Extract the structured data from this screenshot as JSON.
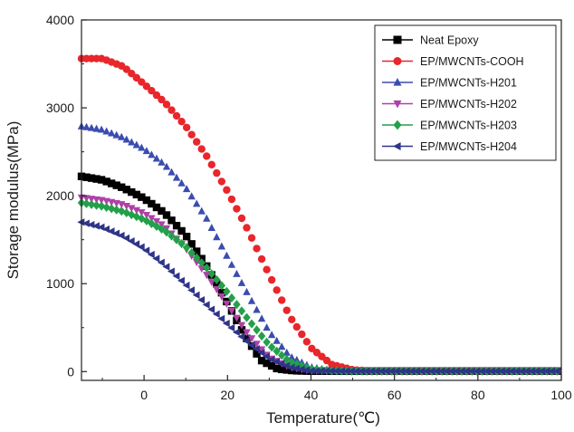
{
  "chart_data": {
    "type": "line",
    "title": "",
    "xlabel": "Temperature(℃)",
    "ylabel": "Storage modulus(MPa)",
    "xlim": [
      -15,
      100
    ],
    "ylim": [
      -100,
      4000
    ],
    "xticks": [
      0,
      20,
      40,
      60,
      80,
      100
    ],
    "yticks": [
      0,
      1000,
      2000,
      3000,
      4000
    ],
    "grid": false,
    "legend_position": "top-right",
    "series": [
      {
        "name": "Neat Epoxy",
        "color": "#000000",
        "marker": "square",
        "x": [
          -15,
          -10,
          -5,
          0,
          5,
          10,
          15,
          20,
          24,
          28,
          32,
          36,
          40,
          50,
          60,
          80,
          100
        ],
        "y": [
          2220,
          2180,
          2090,
          1970,
          1800,
          1550,
          1200,
          780,
          420,
          130,
          30,
          10,
          5,
          5,
          5,
          5,
          5
        ]
      },
      {
        "name": "EP/MWCNTs-COOH",
        "color": "#e8262b",
        "marker": "circle",
        "x": [
          -15,
          -10,
          -5,
          0,
          5,
          10,
          15,
          20,
          25,
          30,
          35,
          40,
          45,
          50,
          55,
          60,
          80,
          100
        ],
        "y": [
          3560,
          3560,
          3470,
          3270,
          3060,
          2790,
          2450,
          2050,
          1600,
          1100,
          620,
          270,
          80,
          20,
          5,
          5,
          5,
          5
        ]
      },
      {
        "name": "EP/MWCNTs-H201",
        "color": "#3b4cb0",
        "marker": "triangle-up",
        "x": [
          -15,
          -10,
          -5,
          0,
          5,
          10,
          15,
          20,
          25,
          30,
          35,
          40,
          45,
          50,
          60,
          80,
          100
        ],
        "y": [
          2790,
          2750,
          2660,
          2530,
          2350,
          2090,
          1740,
          1300,
          870,
          450,
          170,
          50,
          10,
          5,
          5,
          5,
          5
        ]
      },
      {
        "name": "EP/MWCNTs-H202",
        "color": "#b040a8",
        "marker": "triangle-down",
        "x": [
          -15,
          -10,
          -5,
          0,
          5,
          10,
          15,
          20,
          25,
          30,
          35,
          40,
          50,
          60,
          80,
          100
        ],
        "y": [
          1980,
          1950,
          1900,
          1800,
          1650,
          1400,
          1100,
          760,
          420,
          160,
          50,
          10,
          5,
          5,
          5,
          5
        ]
      },
      {
        "name": "EP/MWCNTs-H203",
        "color": "#22a04a",
        "marker": "diamond",
        "x": [
          -15,
          -10,
          -5,
          0,
          5,
          10,
          15,
          20,
          25,
          30,
          35,
          40,
          45,
          50,
          60,
          80,
          100
        ],
        "y": [
          1920,
          1880,
          1820,
          1730,
          1600,
          1420,
          1180,
          900,
          590,
          300,
          110,
          30,
          10,
          5,
          5,
          5,
          5
        ]
      },
      {
        "name": "EP/MWCNTs-H204",
        "color": "#2e3488",
        "marker": "triangle-left",
        "x": [
          -15,
          -10,
          -5,
          0,
          5,
          10,
          15,
          20,
          25,
          30,
          35,
          40,
          50,
          60,
          80,
          100
        ],
        "y": [
          1700,
          1640,
          1540,
          1400,
          1210,
          990,
          760,
          540,
          330,
          150,
          50,
          10,
          5,
          5,
          5,
          5
        ]
      }
    ]
  }
}
